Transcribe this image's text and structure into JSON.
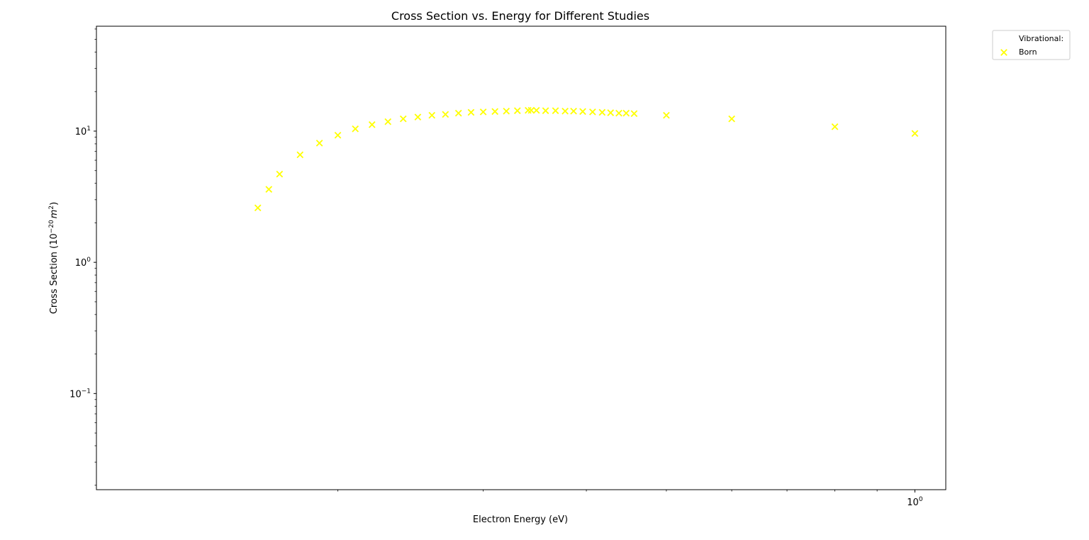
{
  "chart_data": {
    "type": "scatter",
    "title": "Cross Section vs. Energy for Different Studies",
    "xlabel": "Electron Energy (eV)",
    "ylabel_main": "Cross Section (10",
    "ylabel_exp": "−20",
    "ylabel_unit": "m",
    "ylabel_unit_exp": "2",
    "ylabel_close": ")",
    "x_scale": "log",
    "y_scale": "log",
    "xlim": [
      0.102,
      1.09
    ],
    "ylim": [
      0.0185,
      63
    ],
    "grid": false,
    "legend_placement": "upper-right-outside",
    "legend_title": "Vibrational:",
    "x_ticks": [
      {
        "value": 1.0,
        "base": "10",
        "exp": "0"
      }
    ],
    "y_ticks": [
      {
        "value": 0.1,
        "base": "10",
        "exp": "−1"
      },
      {
        "value": 1.0,
        "base": "10",
        "exp": "0"
      },
      {
        "value": 10.0,
        "base": "10",
        "exp": "1"
      }
    ],
    "series": [
      {
        "name": "Born",
        "color": "#ffff00",
        "marker": "x",
        "points": [
          {
            "x": 0.16,
            "y": 2.6
          },
          {
            "x": 0.165,
            "y": 3.6
          },
          {
            "x": 0.17,
            "y": 4.7
          },
          {
            "x": 0.18,
            "y": 6.6
          },
          {
            "x": 0.19,
            "y": 8.1
          },
          {
            "x": 0.2,
            "y": 9.3
          },
          {
            "x": 0.21,
            "y": 10.4
          },
          {
            "x": 0.22,
            "y": 11.2
          },
          {
            "x": 0.23,
            "y": 11.8
          },
          {
            "x": 0.24,
            "y": 12.4
          },
          {
            "x": 0.25,
            "y": 12.8
          },
          {
            "x": 0.26,
            "y": 13.2
          },
          {
            "x": 0.27,
            "y": 13.4
          },
          {
            "x": 0.28,
            "y": 13.7
          },
          {
            "x": 0.29,
            "y": 13.9
          },
          {
            "x": 0.3,
            "y": 14.0
          },
          {
            "x": 0.31,
            "y": 14.1
          },
          {
            "x": 0.32,
            "y": 14.2
          },
          {
            "x": 0.33,
            "y": 14.3
          },
          {
            "x": 0.34,
            "y": 14.4
          },
          {
            "x": 0.343,
            "y": 14.4
          },
          {
            "x": 0.348,
            "y": 14.4
          },
          {
            "x": 0.357,
            "y": 14.3
          },
          {
            "x": 0.367,
            "y": 14.3
          },
          {
            "x": 0.377,
            "y": 14.2
          },
          {
            "x": 0.386,
            "y": 14.2
          },
          {
            "x": 0.396,
            "y": 14.1
          },
          {
            "x": 0.407,
            "y": 14.0
          },
          {
            "x": 0.418,
            "y": 13.9
          },
          {
            "x": 0.428,
            "y": 13.8
          },
          {
            "x": 0.438,
            "y": 13.7
          },
          {
            "x": 0.447,
            "y": 13.7
          },
          {
            "x": 0.457,
            "y": 13.6
          },
          {
            "x": 0.5,
            "y": 13.2
          },
          {
            "x": 0.6,
            "y": 12.4
          },
          {
            "x": 0.8,
            "y": 10.8
          },
          {
            "x": 1.0,
            "y": 9.6
          }
        ]
      }
    ]
  }
}
